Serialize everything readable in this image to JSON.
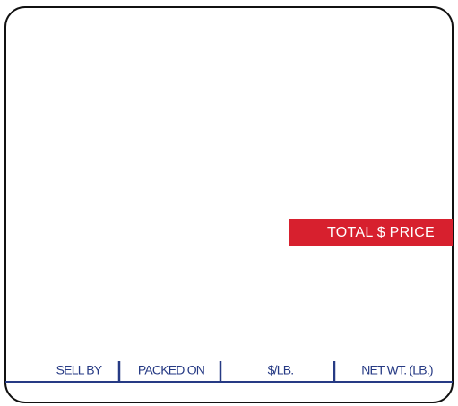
{
  "price_label": "TOTAL $ PRICE",
  "fields": [
    "SELL BY",
    "PACKED ON",
    "$/LB.",
    "NET WT. (LB.)"
  ]
}
